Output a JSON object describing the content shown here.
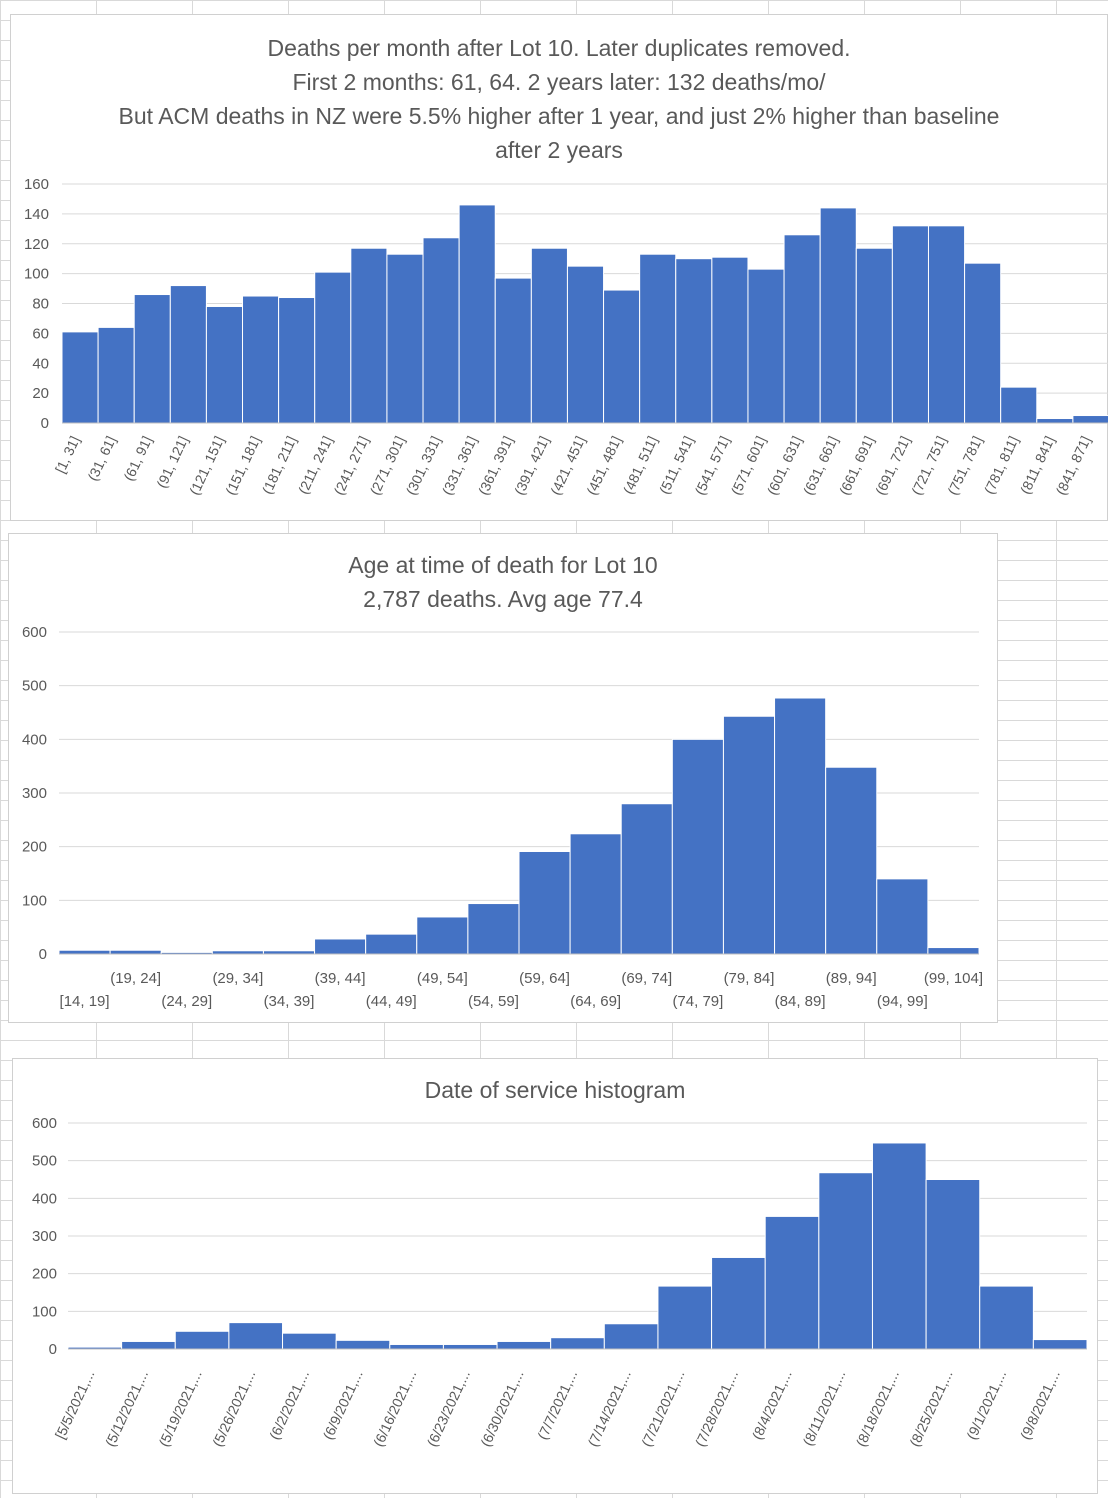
{
  "colors": {
    "bar": "#4472c4",
    "grid": "#d9d9d9",
    "text": "#595959"
  },
  "chart_data": [
    {
      "type": "bar",
      "title_lines": [
        "Deaths per month after Lot 10. Later duplicates removed.",
        "First 2 months: 61, 64. 2 years later: 132 deaths/mo/",
        "But ACM deaths in NZ were 5.5% higher after 1 year, and just 2% higher than baseline",
        "after 2 years"
      ],
      "categories": [
        "[1, 31]",
        "(31, 61]",
        "(61, 91]",
        "(91, 121]",
        "(121, 151]",
        "(151, 181]",
        "(181, 211]",
        "(211, 241]",
        "(241, 271]",
        "(271, 301]",
        "(301, 331]",
        "(331, 361]",
        "(361, 391]",
        "(391, 421]",
        "(421, 451]",
        "(451, 481]",
        "(481, 511]",
        "(511, 541]",
        "(541, 571]",
        "(571, 601]",
        "(601, 631]",
        "(631, 661]",
        "(661, 691]",
        "(691, 721]",
        "(721, 751]",
        "(751, 781]",
        "(781, 811]",
        "(811, 841]",
        "(841, 871]"
      ],
      "values": [
        61,
        64,
        86,
        92,
        78,
        85,
        84,
        101,
        117,
        113,
        124,
        146,
        97,
        117,
        105,
        89,
        113,
        110,
        111,
        103,
        126,
        144,
        117,
        132,
        132,
        107,
        24,
        3,
        5
      ],
      "ylim": [
        0,
        160
      ],
      "yticks": [
        0,
        20,
        40,
        60,
        80,
        100,
        120,
        140,
        160
      ],
      "grid": true,
      "legend": "none"
    },
    {
      "type": "bar",
      "title_lines": [
        "Age at time of death for Lot 10",
        "2,787 deaths. Avg age 77.4"
      ],
      "categories": [
        "[14, 19]",
        "(19, 24]",
        "(24, 29]",
        "(29, 34]",
        "(34, 39]",
        "(39, 44]",
        "(44, 49]",
        "(49, 54]",
        "(54, 59]",
        "(59, 64]",
        "(64, 69]",
        "(69, 74]",
        "(74, 79]",
        "(79, 84]",
        "(84, 89]",
        "(89, 94]",
        "(94, 99]",
        "(99, 104]"
      ],
      "values": [
        7,
        7,
        3,
        6,
        6,
        28,
        37,
        69,
        94,
        191,
        224,
        280,
        400,
        443,
        477,
        348,
        140,
        12
      ],
      "ylim": [
        0,
        600
      ],
      "yticks": [
        0,
        100,
        200,
        300,
        400,
        500,
        600
      ],
      "grid": true,
      "legend": "none"
    },
    {
      "type": "bar",
      "title_lines": [
        "Date of service histogram"
      ],
      "categories": [
        "[5/5/2021,...",
        "(5/12/2021,...",
        "(5/19/2021,...",
        "(5/26/2021,...",
        "(6/2/2021,...",
        "(6/9/2021,...",
        "(6/16/2021,...",
        "(6/23/2021,...",
        "(6/30/2021,...",
        "(7/7/2021,...",
        "(7/14/2021,...",
        "(7/21/2021,...",
        "(7/28/2021,...",
        "(8/4/2021,...",
        "(8/11/2021,...",
        "(8/18/2021,...",
        "(8/25/2021,...",
        "(9/1/2021,...",
        "(9/8/2021,..."
      ],
      "values": [
        5,
        20,
        47,
        70,
        42,
        23,
        12,
        12,
        20,
        30,
        67,
        167,
        243,
        352,
        468,
        547,
        450,
        167,
        25
      ],
      "ylim": [
        0,
        600
      ],
      "yticks": [
        0,
        100,
        200,
        300,
        400,
        500,
        600
      ],
      "grid": true,
      "legend": "none"
    }
  ]
}
